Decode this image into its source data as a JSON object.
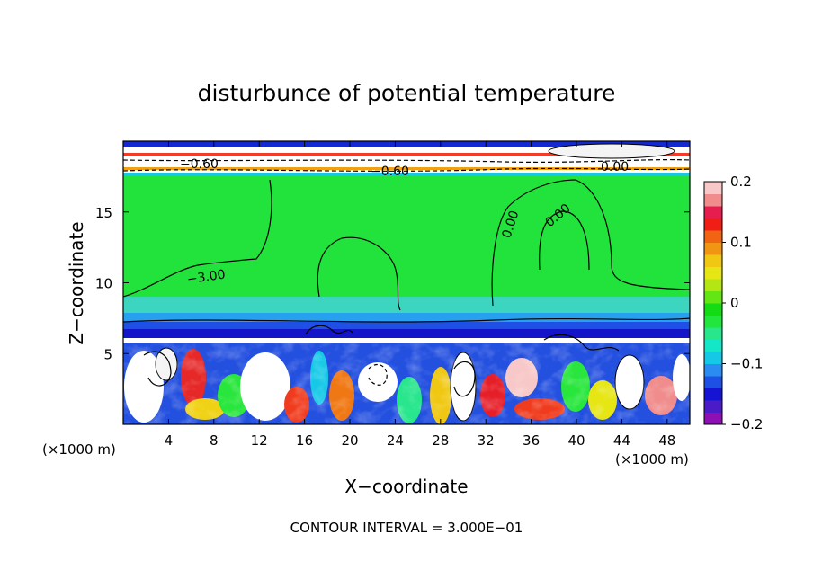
{
  "chart_data": {
    "type": "heatmap",
    "title": "disturbunce of potential temperature",
    "xlabel": "X−coordinate",
    "ylabel": "Z−coordinate",
    "x_unit": "(×1000 m)",
    "x_unit_right": "(×1000 m)",
    "xlim": [
      0,
      50
    ],
    "ylim": [
      0,
      20
    ],
    "x_ticks": [
      4,
      8,
      12,
      16,
      20,
      24,
      28,
      32,
      36,
      40,
      44,
      48
    ],
    "y_ticks": [
      5,
      10,
      15
    ],
    "colorbar": {
      "range": [
        -0.2,
        0.2
      ],
      "tick_labels": [
        "0.2",
        "0.1",
        "0",
        "−0.1",
        "−0.2"
      ],
      "tick_values": [
        0.2,
        0.1,
        0,
        -0.1,
        -0.2
      ],
      "colors": [
        "#8e10b4",
        "#4a1cc8",
        "#1414d2",
        "#1e50e6",
        "#2a8cf0",
        "#14c8e6",
        "#14e6c8",
        "#28e68c",
        "#22e63c",
        "#14dc14",
        "#64e614",
        "#b4e614",
        "#e6e614",
        "#f0c814",
        "#f09614",
        "#f06414",
        "#f01e14",
        "#e61e50",
        "#f08c8c",
        "#f8c8c8"
      ]
    },
    "contour_labels": [
      "−0.60",
      "−0.60",
      "0.00",
      "0.00",
      "0.00",
      "−3.00"
    ],
    "annotation": "CONTOUR INTERVAL = 3.000E−01"
  }
}
